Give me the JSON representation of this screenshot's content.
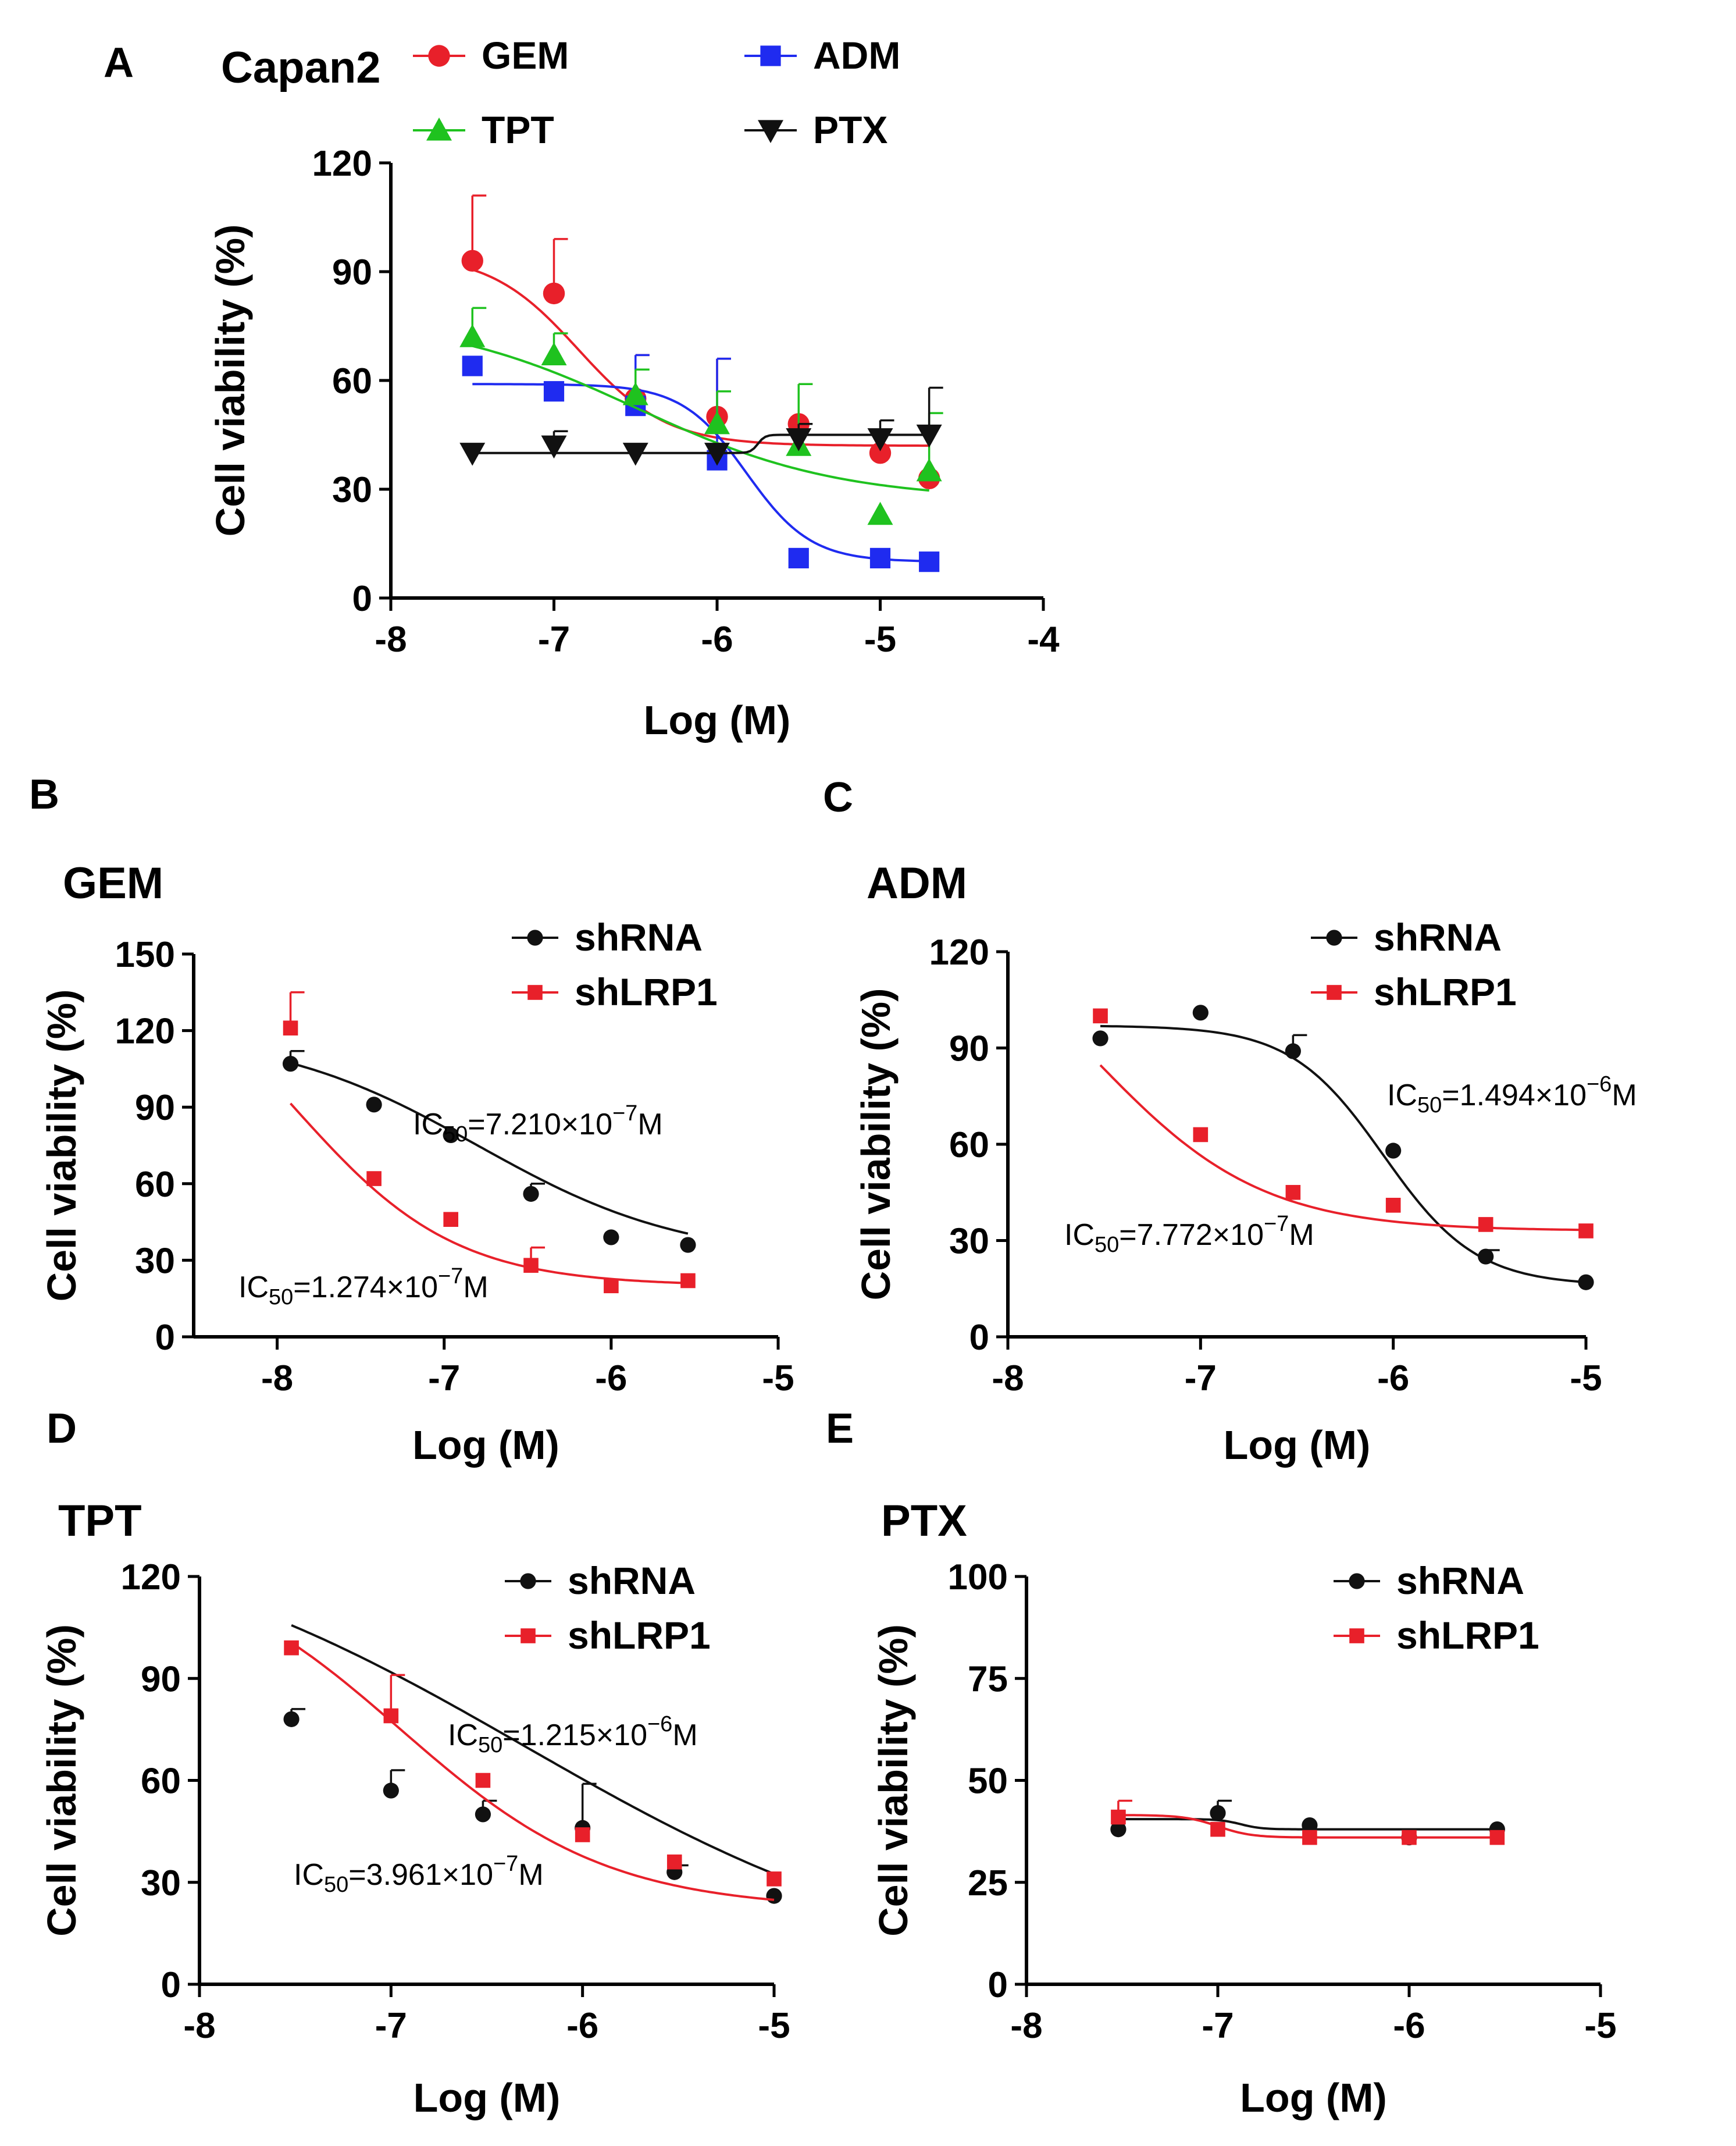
{
  "chart_data": [
    {
      "panel_label": "A",
      "type": "line",
      "title": "Capan2",
      "xlabel": "Log (M)",
      "ylabel": "Cell viability (%)",
      "xlim": [
        -8,
        -4
      ],
      "ylim": [
        0,
        120
      ],
      "xticks": [
        "-8",
        "-7",
        "-6",
        "-5",
        "-4"
      ],
      "yticks": [
        "0",
        "30",
        "60",
        "90",
        "120"
      ],
      "series": [
        {
          "name": "GEM",
          "color": "#e8202a",
          "marker": "circle",
          "x": [
            -7.5,
            -7.0,
            -6.5,
            -6.0,
            -5.5,
            -5.0,
            -4.7
          ],
          "y": [
            93,
            84,
            55,
            50,
            48,
            40,
            33
          ],
          "err": [
            18,
            15,
            12,
            16,
            11,
            0,
            0
          ],
          "fit": {
            "top": 95,
            "bottom": 42,
            "logIC50": -6.85,
            "hill": 1.6
          }
        },
        {
          "name": "ADM",
          "color": "#1f2bf0",
          "marker": "square",
          "x": [
            -7.5,
            -7.0,
            -6.5,
            -6.0,
            -5.5,
            -5.0,
            -4.7
          ],
          "y": [
            64,
            57,
            53,
            38,
            11,
            11,
            10
          ],
          "err": [
            0,
            0,
            14,
            28,
            0,
            0,
            0
          ],
          "fit": {
            "top": 59,
            "bottom": 10,
            "logIC50": -5.82,
            "hill": 2.2
          }
        },
        {
          "name": "TPT",
          "color": "#1fc21f",
          "marker": "triangle-up",
          "x": [
            -7.5,
            -7.0,
            -6.5,
            -6.0,
            -5.5,
            -5.0,
            -4.7
          ],
          "y": [
            72,
            67,
            56,
            48,
            42,
            23,
            35
          ],
          "err": [
            8,
            6,
            7,
            9,
            17,
            0,
            16
          ],
          "fit": {
            "top": 78,
            "bottom": 27,
            "logIC50": -6.5,
            "hill": 0.7
          }
        },
        {
          "name": "PTX",
          "color": "#111111",
          "marker": "triangle-down",
          "x": [
            -7.5,
            -7.0,
            -6.5,
            -6.0,
            -5.5,
            -5.0,
            -4.7
          ],
          "y": [
            40,
            42,
            40,
            40,
            44,
            44,
            45
          ],
          "err": [
            0,
            4,
            0,
            0,
            4,
            5,
            13
          ],
          "fit": {
            "top": 40,
            "bottom": 45,
            "logIC50": -5.75,
            "hill": 20
          }
        }
      ]
    },
    {
      "panel_label": "B",
      "type": "line",
      "title": "GEM",
      "xlabel": "Log (M)",
      "ylabel": "Cell viability (%)",
      "xlim": [
        -8.5,
        -5
      ],
      "ylim": [
        0,
        150
      ],
      "xticks": [
        "-8",
        "-7",
        "-6",
        "-5"
      ],
      "yticks": [
        "0",
        "30",
        "60",
        "90",
        "120",
        "150"
      ],
      "series": [
        {
          "name": "shRNA",
          "color": "#111111",
          "marker": "circle",
          "x": [
            -7.92,
            -7.42,
            -6.96,
            -6.48,
            -6.0,
            -5.54
          ],
          "y": [
            107,
            91,
            79,
            56,
            39,
            36
          ],
          "err": [
            5,
            0,
            0,
            4,
            0,
            0
          ],
          "fit": {
            "top": 120,
            "bottom": 30,
            "logIC50": -6.8,
            "hill": 0.7
          }
        },
        {
          "name": "shLRP1",
          "color": "#e8202a",
          "marker": "square",
          "x": [
            -7.92,
            -7.42,
            -6.96,
            -6.48,
            -6.0,
            -5.54
          ],
          "y": [
            121,
            62,
            46,
            28,
            20,
            22
          ],
          "err": [
            14,
            0,
            0,
            7,
            0,
            0
          ],
          "fit": {
            "top": 160,
            "bottom": 20,
            "logIC50": -7.9,
            "hill": 0.9
          }
        }
      ],
      "annotations": [
        {
          "pre": "IC",
          "sub": "50",
          "mid": "=7.210×10",
          "sup": "−7",
          "post": "M"
        },
        {
          "pre": "IC",
          "sub": "50",
          "mid": "=1.274×10",
          "sup": "−7",
          "post": "M"
        }
      ]
    },
    {
      "panel_label": "C",
      "type": "line",
      "title": "ADM",
      "xlabel": "Log (M)",
      "ylabel": "Cell viability (%)",
      "xlim": [
        -8,
        -5
      ],
      "ylim": [
        0,
        120
      ],
      "xticks": [
        "-8",
        "-7",
        "-6",
        "-5"
      ],
      "yticks": [
        "0",
        "30",
        "60",
        "90",
        "120"
      ],
      "series": [
        {
          "name": "shRNA",
          "color": "#111111",
          "marker": "circle",
          "x": [
            -7.52,
            -7.0,
            -6.52,
            -6.0,
            -5.52,
            -5.0
          ],
          "y": [
            93,
            101,
            89,
            58,
            25,
            17
          ],
          "err": [
            0,
            0,
            5,
            0,
            2,
            0
          ],
          "fit": {
            "top": 97,
            "bottom": 16,
            "logIC50": -6.05,
            "hill": 1.8
          }
        },
        {
          "name": "shLRP1",
          "color": "#e8202a",
          "marker": "square",
          "x": [
            -7.52,
            -7.0,
            -6.52,
            -6.0,
            -5.52,
            -5.0
          ],
          "y": [
            100,
            63,
            45,
            41,
            35,
            33
          ],
          "err": [
            0,
            0,
            0,
            0,
            0,
            0
          ],
          "fit": {
            "top": 140,
            "bottom": 33,
            "logIC50": -7.55,
            "hill": 1.0
          }
        }
      ],
      "annotations": [
        {
          "pre": "IC",
          "sub": "50",
          "mid": "=1.494×10",
          "sup": "−6",
          "post": "M"
        },
        {
          "pre": "IC",
          "sub": "50",
          "mid": "=7.772×10",
          "sup": "−7",
          "post": "M"
        }
      ]
    },
    {
      "panel_label": "D",
      "type": "line",
      "title": "TPT",
      "xlabel": "Log (M)",
      "ylabel": "Cell viability (%)",
      "xlim": [
        -8,
        -5
      ],
      "ylim": [
        0,
        120
      ],
      "xticks": [
        "-8",
        "-7",
        "-6",
        "-5"
      ],
      "yticks": [
        "0",
        "30",
        "60",
        "90",
        "120"
      ],
      "series": [
        {
          "name": "shRNA",
          "color": "#111111",
          "marker": "circle",
          "x": [
            -7.52,
            -7.0,
            -6.52,
            -6.0,
            -5.52,
            -5.0
          ],
          "y": [
            78,
            57,
            50,
            46,
            33,
            26
          ],
          "err": [
            3,
            6,
            4,
            13,
            2,
            0
          ],
          "fit": {
            "top": 140,
            "bottom": 0,
            "logIC50": -6.3,
            "hill": 0.4
          }
        },
        {
          "name": "shLRP1",
          "color": "#e8202a",
          "marker": "square",
          "x": [
            -7.52,
            -7.0,
            -6.52,
            -6.0,
            -5.52,
            -5.0
          ],
          "y": [
            99,
            79,
            60,
            44,
            36,
            31
          ],
          "err": [
            0,
            12,
            0,
            0,
            0,
            0
          ],
          "fit": {
            "top": 128,
            "bottom": 22,
            "logIC50": -6.95,
            "hill": 0.8
          }
        }
      ],
      "annotations": [
        {
          "pre": "IC",
          "sub": "50",
          "mid": "=1.215×10",
          "sup": "−6",
          "post": "M"
        },
        {
          "pre": "IC",
          "sub": "50",
          "mid": "=3.961×10",
          "sup": "−7",
          "post": "M"
        }
      ]
    },
    {
      "panel_label": "E",
      "type": "line",
      "title": "PTX",
      "xlabel": "Log (M)",
      "ylabel": "Cell viability (%)",
      "xlim": [
        -8,
        -5
      ],
      "ylim": [
        0,
        100
      ],
      "xticks": [
        "-8",
        "-7",
        "-6",
        "-5"
      ],
      "yticks": [
        "0",
        "25",
        "50",
        "75",
        "100"
      ],
      "series": [
        {
          "name": "shRNA",
          "color": "#111111",
          "marker": "circle",
          "x": [
            -7.52,
            -7.0,
            -6.52,
            -6.0,
            -5.54
          ],
          "y": [
            38,
            42,
            39,
            36,
            38
          ],
          "err": [
            0,
            3,
            0,
            0,
            0
          ],
          "fit": {
            "top": 40.5,
            "bottom": 38,
            "logIC50": -6.88,
            "hill": 8
          }
        },
        {
          "name": "shLRP1",
          "color": "#e8202a",
          "marker": "square",
          "x": [
            -7.52,
            -7.0,
            -6.52,
            -6.0,
            -5.54
          ],
          "y": [
            41,
            38,
            36,
            36,
            36
          ],
          "err": [
            4,
            0,
            0,
            0,
            0
          ],
          "fit": {
            "top": 41.5,
            "bottom": 36,
            "logIC50": -7.0,
            "hill": 5
          }
        }
      ]
    }
  ]
}
